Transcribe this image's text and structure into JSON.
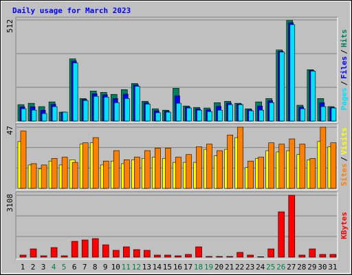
{
  "chart_data": [
    {
      "type": "bar",
      "title": "Daily usage for March 2023",
      "legend_separator": "/",
      "ylim": [
        0,
        512
      ],
      "yticks": [
        512
      ],
      "series": [
        {
          "name": "Hits",
          "color": "#00805c",
          "values": [
            83,
            90,
            73,
            97,
            45,
            315,
            114,
            152,
            145,
            135,
            159,
            190,
            100,
            62,
            55,
            166,
            76,
            69,
            66,
            93,
            100,
            90,
            62,
            97,
            114,
            360,
            509,
            80,
            260,
            114,
            73
          ]
        },
        {
          "name": "Files",
          "color": "#0000ff",
          "values": [
            72,
            72,
            55,
            85,
            45,
            304,
            109,
            138,
            133,
            114,
            136,
            183,
            93,
            52,
            50,
            128,
            71,
            62,
            57,
            74,
            91,
            86,
            57,
            76,
            103,
            354,
            498,
            71,
            256,
            93,
            69
          ]
        },
        {
          "name": "Pages",
          "color": "#00e0ff",
          "values": [
            62,
            55,
            38,
            73,
            45,
            294,
            104,
            125,
            121,
            93,
            114,
            176,
            86,
            42,
            45,
            90,
            66,
            55,
            48,
            55,
            83,
            83,
            52,
            55,
            93,
            349,
            488,
            62,
            253,
            73,
            66
          ]
        }
      ]
    },
    {
      "type": "bar",
      "legend_separator": "/",
      "ylim": [
        0,
        47
      ],
      "yticks": [
        47
      ],
      "series": [
        {
          "name": "Visits",
          "color": "#ffff00",
          "values": [
            36,
            18,
            15,
            21,
            18,
            22,
            34,
            35,
            18,
            21,
            19,
            22,
            23,
            24,
            23,
            20,
            20,
            20,
            30,
            25,
            30,
            39,
            16,
            23,
            29,
            28,
            29,
            26,
            22,
            36,
            32
          ]
        },
        {
          "name": "Sites",
          "color": "#ff8000",
          "values": [
            44,
            19,
            18,
            23,
            24,
            20,
            35,
            39,
            21,
            29,
            22,
            24,
            29,
            31,
            31,
            24,
            26,
            32,
            34,
            29,
            41,
            47,
            21,
            24,
            35,
            34,
            38,
            34,
            23,
            47,
            35
          ]
        }
      ]
    },
    {
      "type": "bar",
      "ylim": [
        0,
        3108
      ],
      "yticks": [
        3108
      ],
      "categories": [
        "1",
        "2",
        "3",
        "4",
        "5",
        "6",
        "7",
        "8",
        "9",
        "10",
        "11",
        "12",
        "13",
        "14",
        "15",
        "16",
        "17",
        "18",
        "19",
        "20",
        "21",
        "22",
        "23",
        "24",
        "25",
        "26",
        "27",
        "28",
        "29",
        "30",
        "31"
      ],
      "weekend": [
        "4",
        "5",
        "11",
        "12",
        "18",
        "19",
        "25",
        "26"
      ],
      "weekend_color": "#008040",
      "series": [
        {
          "name": "KBytes",
          "color": "#ff0000",
          "values": [
            104,
            414,
            69,
            483,
            69,
            794,
            863,
            932,
            621,
            345,
            518,
            380,
            345,
            104,
            104,
            69,
            138,
            518,
            35,
            35,
            35,
            242,
            104,
            20,
            414,
            2277,
            3108,
            104,
            414,
            138,
            138
          ]
        }
      ]
    }
  ]
}
